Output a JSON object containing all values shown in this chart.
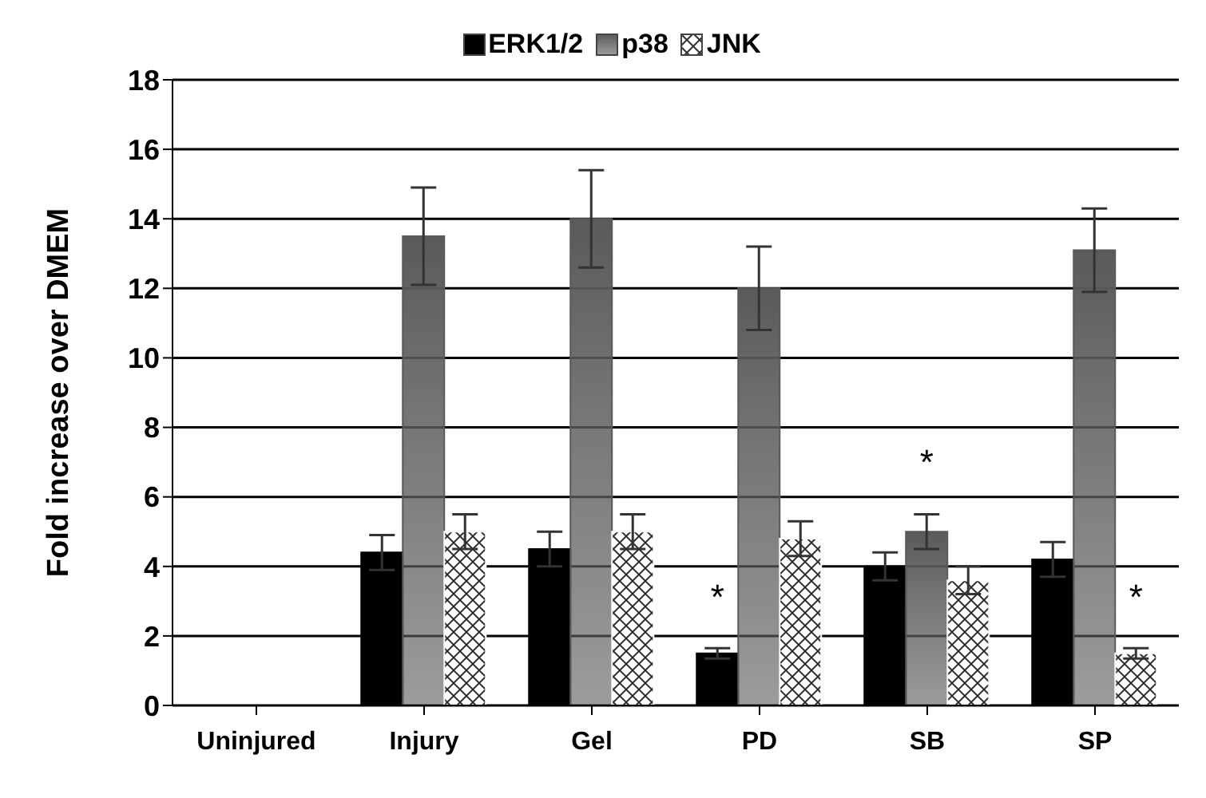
{
  "chart_data": {
    "type": "bar",
    "ylabel": "Fold increase over DMEM",
    "categories": [
      "Uninjured",
      "Injury",
      "Gel",
      "PD",
      "SB",
      "SP"
    ],
    "series": [
      {
        "name": "ERK1/2",
        "color": "#000000",
        "values": [
          0,
          4.4,
          4.5,
          1.5,
          4.0,
          4.2
        ],
        "errors": [
          null,
          0.5,
          0.5,
          0.15,
          0.4,
          0.5
        ],
        "value_labels": [
          null,
          null,
          null,
          "*",
          null,
          null
        ]
      },
      {
        "name": "p38",
        "color": "#5a5a5a",
        "values": [
          0,
          13.5,
          14.0,
          12.0,
          5.0,
          13.1
        ],
        "errors": [
          null,
          1.4,
          1.4,
          1.2,
          0.5,
          1.2
        ],
        "value_labels": [
          null,
          null,
          null,
          null,
          "*",
          null
        ]
      },
      {
        "name": "JNK",
        "color": "#ffffff",
        "values": [
          0,
          5.0,
          5.0,
          4.8,
          3.6,
          1.5
        ],
        "errors": [
          null,
          0.5,
          0.5,
          0.5,
          0.4,
          0.15
        ],
        "value_labels": [
          null,
          null,
          null,
          null,
          null,
          "*"
        ]
      }
    ],
    "ylim": [
      0,
      18
    ],
    "yticks": [
      0,
      2,
      4,
      6,
      8,
      10,
      12,
      14,
      16,
      18
    ],
    "grid": "y",
    "legend": "top"
  }
}
